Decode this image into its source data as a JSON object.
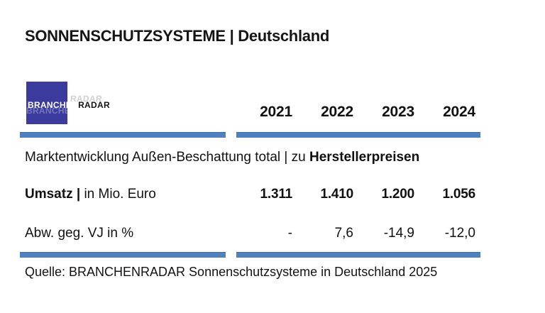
{
  "title": "SONNENSCHUTZSYSTEME | Deutschland",
  "logo": {
    "part1": "BRANCHEN",
    "part2": "RADAR"
  },
  "colors": {
    "bar_blue": "#4e81bd",
    "logo_blue": "#3b3b9d"
  },
  "table": {
    "years": [
      "2021",
      "2022",
      "2023",
      "2024"
    ],
    "subtitle_regular": "Marktentwicklung Außen-Beschattung total | zu ",
    "subtitle_bold": "Herstellerpreisen",
    "rows": [
      {
        "label_bold": "Umsatz |",
        "label_regular": " in Mio. Euro",
        "values": [
          "1.311",
          "1.410",
          "1.200",
          "1.056"
        ]
      },
      {
        "label_bold": "",
        "label_regular": "Abw. geg. VJ in %",
        "values": [
          "-",
          "7,6",
          "-14,9",
          "-12,0"
        ]
      }
    ]
  },
  "source": "Quelle: BRANCHENRADAR Sonnenschutzsysteme in Deutschland 2025",
  "chart_data": {
    "type": "table",
    "title": "SONNENSCHUTZSYSTEME | Deutschland",
    "subtitle": "Marktentwicklung Außen-Beschattung total | zu Herstellerpreisen",
    "categories": [
      "2021",
      "2022",
      "2023",
      "2024"
    ],
    "series": [
      {
        "name": "Umsatz | in Mio. Euro",
        "values": [
          1311,
          1410,
          1200,
          1056
        ]
      },
      {
        "name": "Abw. geg. VJ in %",
        "values": [
          null,
          7.6,
          -14.9,
          -12.0
        ]
      }
    ],
    "source": "Quelle: BRANCHENRADAR Sonnenschutzsysteme in Deutschland 2025"
  }
}
